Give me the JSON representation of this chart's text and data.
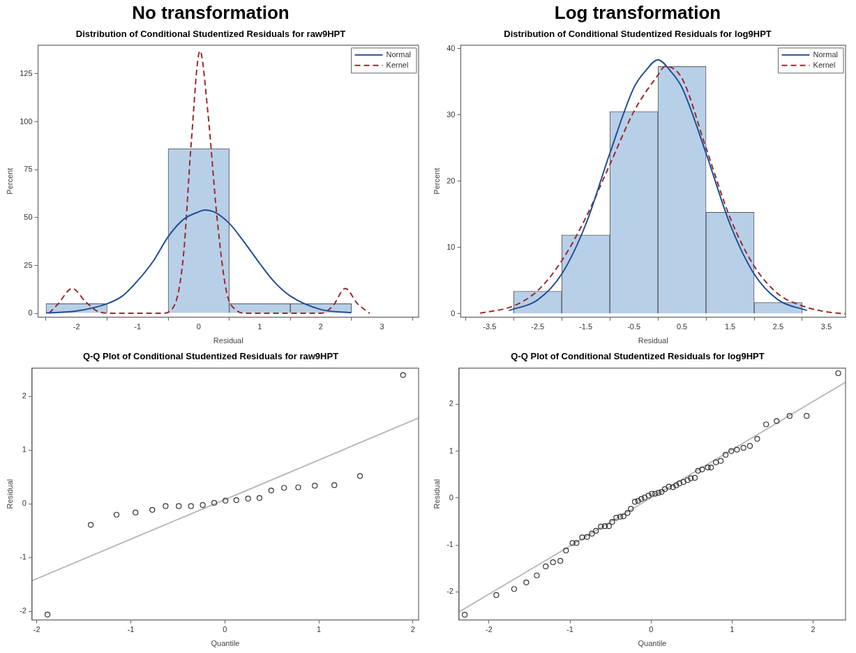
{
  "chart_data": [
    {
      "type": "histogram",
      "title": "No transformation",
      "subtitle": "Distribution of Conditional Studentized Residuals for raw9HPT",
      "xlabel": "Residual",
      "ylabel": "Percent",
      "bins": [
        -2.5,
        -1.5,
        -0.5,
        0.5,
        1.5,
        2.5
      ],
      "values": [
        5,
        0,
        86,
        5,
        5
      ],
      "color": "#b8cfe8",
      "xlim": [
        -2.63,
        3.6
      ],
      "ylim": [
        -2,
        140
      ],
      "xticks": [
        -2,
        -1,
        0,
        1,
        2,
        3
      ],
      "yticks": [
        0,
        25,
        50,
        75,
        100,
        125
      ],
      "legend": "top right",
      "series": [
        {
          "name": "Normal",
          "type": "line",
          "color": "#1f4e94",
          "line_style": "solid",
          "x": [
            -2.5,
            -2,
            -1.5,
            -1.25,
            -1,
            -0.75,
            -0.5,
            -0.25,
            0,
            0.1,
            0.25,
            0.5,
            0.75,
            1,
            1.25,
            1.5,
            2,
            2.5
          ],
          "values": [
            0.2,
            1.2,
            5,
            9,
            17,
            27,
            40,
            49,
            53,
            54,
            53,
            47,
            37,
            26,
            16,
            9,
            2,
            0.3
          ]
        },
        {
          "name": "Kernel",
          "type": "line",
          "color": "#9b2a2a",
          "line_style": "dashed",
          "x": [
            -2.45,
            -2.3,
            -2.07,
            -1.85,
            -1.65,
            -1.4,
            -0.6,
            -0.4,
            -0.25,
            -0.12,
            0.02,
            0.15,
            0.3,
            0.45,
            0.6,
            0.8,
            2,
            2.2,
            2.4,
            2.6,
            2.8
          ],
          "values": [
            0,
            5,
            13,
            6,
            1,
            0,
            0,
            4,
            30,
            90,
            137,
            105,
            50,
            12,
            2,
            0,
            0,
            4,
            13,
            5,
            0
          ]
        }
      ]
    },
    {
      "type": "histogram",
      "title": "Log transformation",
      "subtitle": "Distribution of Conditional Studentized Residuals for log9HPT",
      "xlabel": "Residual",
      "ylabel": "Percent",
      "bins": [
        -3,
        -2,
        -1,
        0,
        1,
        2,
        3
      ],
      "values": [
        3.4,
        11.9,
        30.5,
        37.3,
        15.3,
        1.7
      ],
      "color": "#b8cfe8",
      "xlim": [
        -4.1,
        3.9
      ],
      "ylim": [
        -0.5,
        40.5
      ],
      "xticks": [
        -3.5,
        -2.5,
        -1.5,
        -0.5,
        0.5,
        1.5,
        2.5,
        3.5
      ],
      "yticks": [
        0,
        10,
        20,
        30,
        40
      ],
      "legend": "top right",
      "series": [
        {
          "name": "Normal",
          "type": "line",
          "color": "#1f4e94",
          "line_style": "solid",
          "x": [
            -3.1,
            -2.5,
            -2,
            -1.5,
            -1,
            -0.5,
            -0.25,
            0,
            0.25,
            0.5,
            1,
            1.5,
            2,
            2.5,
            3.1
          ],
          "values": [
            0.5,
            2.1,
            6,
            13.5,
            24.2,
            34.1,
            36.7,
            38.3,
            36.7,
            34.1,
            24.2,
            13.5,
            6,
            2.1,
            0.5
          ]
        },
        {
          "name": "Kernel",
          "type": "line",
          "color": "#9b2a2a",
          "line_style": "dashed",
          "x": [
            -3.7,
            -3,
            -2.5,
            -2,
            -1.5,
            -1,
            -0.5,
            0,
            0.15,
            0.5,
            1,
            1.5,
            2,
            2.5,
            3,
            3.5,
            3.9
          ],
          "values": [
            0.1,
            1.2,
            3.5,
            8,
            14.5,
            22.5,
            30.5,
            36,
            37.3,
            35.5,
            25,
            14.5,
            7.2,
            3,
            1.2,
            0.3,
            0
          ]
        }
      ]
    },
    {
      "type": "scatter",
      "title": "Q-Q Plot of Conditional Studentized Residuals for raw9HPT",
      "xlabel": "Quantile",
      "ylabel": "Residual",
      "xlim": [
        -2.05,
        2.06
      ],
      "ylim": [
        -2.16,
        2.53
      ],
      "xticks": [
        -2,
        -1,
        0,
        1,
        2
      ],
      "yticks": [
        -2,
        -1,
        0,
        1,
        2
      ],
      "series": [
        {
          "color": "#333333",
          "marker": "circle",
          "x": [
            -1.886,
            -1.426,
            -1.152,
            -0.95,
            -0.772,
            -0.63,
            -0.49,
            -0.36,
            -0.235,
            -0.113,
            0.006,
            0.122,
            0.247,
            0.368,
            0.493,
            0.63,
            0.78,
            0.956,
            1.164,
            1.437,
            1.895
          ],
          "values": [
            -2.06,
            -0.39,
            -0.2,
            -0.16,
            -0.11,
            -0.04,
            -0.04,
            -0.04,
            -0.02,
            0.02,
            0.06,
            0.07,
            0.1,
            0.11,
            0.25,
            0.3,
            0.31,
            0.34,
            0.35,
            0.52,
            2.4
          ]
        },
        {
          "type": "line",
          "color": "#bbbbbb",
          "x": [
            -2.05,
            2.06
          ],
          "values": [
            -1.43,
            1.6
          ]
        }
      ]
    },
    {
      "type": "scatter",
      "title": "Q-Q Plot of Conditional Studentized Residuals for log9HPT",
      "xlabel": "Quantile",
      "ylabel": "Residual",
      "xlim": [
        -2.37,
        2.4
      ],
      "ylim": [
        -2.6,
        2.77
      ],
      "xticks": [
        -2,
        -1,
        0,
        1,
        2
      ],
      "yticks": [
        -2,
        -1,
        0,
        1,
        2
      ],
      "series": [
        {
          "color": "#333333",
          "marker": "circle",
          "x": [
            -2.3,
            -1.91,
            -1.69,
            -1.54,
            -1.41,
            -1.3,
            -1.21,
            -1.12,
            -1.05,
            -0.97,
            -0.92,
            -0.85,
            -0.79,
            -0.73,
            -0.68,
            -0.62,
            -0.57,
            -0.52,
            -0.48,
            -0.43,
            -0.38,
            -0.34,
            -0.29,
            -0.25,
            -0.2,
            -0.16,
            -0.12,
            -0.08,
            -0.03,
            0.01,
            0.05,
            0.09,
            0.13,
            0.17,
            0.22,
            0.27,
            0.31,
            0.35,
            0.4,
            0.45,
            0.49,
            0.54,
            0.58,
            0.63,
            0.7,
            0.74,
            0.8,
            0.86,
            0.92,
            0.99,
            1.06,
            1.14,
            1.22,
            1.31,
            1.42,
            1.55,
            1.71,
            1.92,
            2.31
          ],
          "values": [
            -2.49,
            -2.07,
            -1.94,
            -1.8,
            -1.65,
            -1.46,
            -1.37,
            -1.34,
            -1.12,
            -0.96,
            -0.96,
            -0.84,
            -0.83,
            -0.76,
            -0.7,
            -0.61,
            -0.6,
            -0.6,
            -0.51,
            -0.42,
            -0.4,
            -0.39,
            -0.32,
            -0.23,
            -0.08,
            -0.06,
            -0.02,
            0.01,
            0.05,
            0.09,
            0.09,
            0.11,
            0.13,
            0.19,
            0.24,
            0.23,
            0.27,
            0.31,
            0.34,
            0.38,
            0.42,
            0.43,
            0.58,
            0.61,
            0.65,
            0.65,
            0.76,
            0.79,
            0.92,
            1,
            1.03,
            1.07,
            1.11,
            1.26,
            1.57,
            1.64,
            1.75,
            1.75,
            2.66
          ]
        },
        {
          "type": "line",
          "color": "#bbbbbb",
          "x": [
            -2.37,
            2.4
          ],
          "values": [
            -2.43,
            2.47
          ]
        }
      ]
    }
  ]
}
